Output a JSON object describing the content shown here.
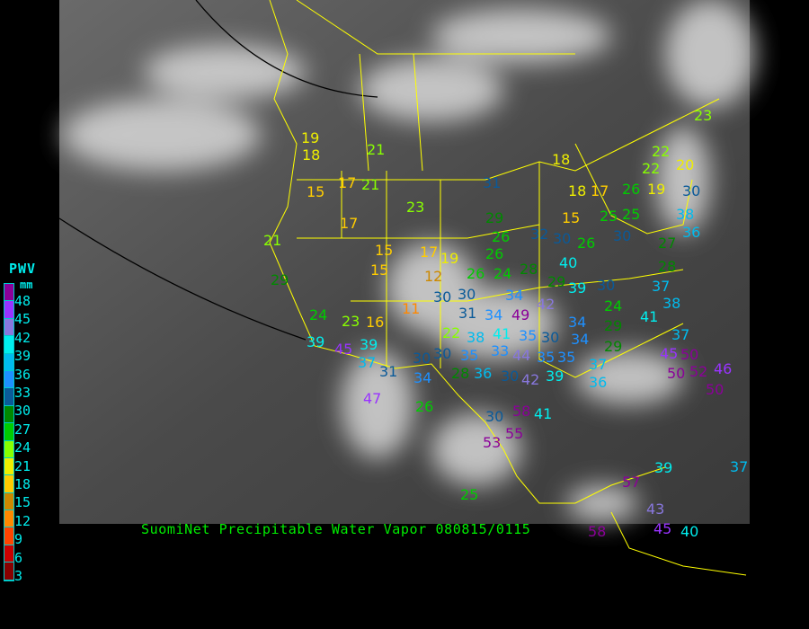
{
  "title": "SuomiNet Precipitable Water Vapor 080815/0115",
  "legend": {
    "title": "PWV",
    "unit": "mm",
    "labels": [
      "48",
      "45",
      "42",
      "39",
      "36",
      "33",
      "30",
      "27",
      "24",
      "21",
      "18",
      "15",
      "12",
      "9",
      "6",
      "3"
    ],
    "colors": [
      "#8b0099",
      "#9933ff",
      "#8877dd",
      "#00eeee",
      "#00bbee",
      "#1e90ff",
      "#0a5a99",
      "#008800",
      "#00cc00",
      "#88ff00",
      "#eeee00",
      "#ffcc00",
      "#cc8800",
      "#ff8800",
      "#ff4400",
      "#cc0000",
      "#880000"
    ]
  },
  "colors": {
    "border": "#ffff00",
    "title": "#00ee00",
    "legend_text": "#00eeee"
  },
  "stations": [
    21,
    17,
    21,
    15,
    18,
    17,
    21,
    29,
    23,
    31,
    18,
    18,
    17,
    15,
    17,
    19,
    12,
    30,
    15,
    15,
    11,
    29,
    26,
    26,
    32,
    30,
    26,
    40,
    26,
    24,
    28,
    29,
    30,
    34,
    49,
    42,
    39,
    30,
    34,
    41,
    31,
    22,
    38,
    33,
    44,
    35,
    30,
    35,
    30,
    30,
    28,
    36,
    30,
    42,
    35,
    39,
    35,
    34,
    34,
    24,
    29,
    29,
    37,
    36,
    41,
    37,
    38,
    30,
    25,
    25,
    27,
    36,
    38,
    30,
    19,
    26,
    22,
    22,
    23,
    20,
    28,
    24,
    23,
    16,
    39,
    45,
    39,
    37,
    31,
    34,
    47,
    26,
    30,
    58,
    41,
    53,
    55,
    37,
    45,
    50,
    52,
    50,
    46,
    50,
    39,
    37,
    57,
    43,
    45,
    40,
    58,
    25,
    19
  ]
}
